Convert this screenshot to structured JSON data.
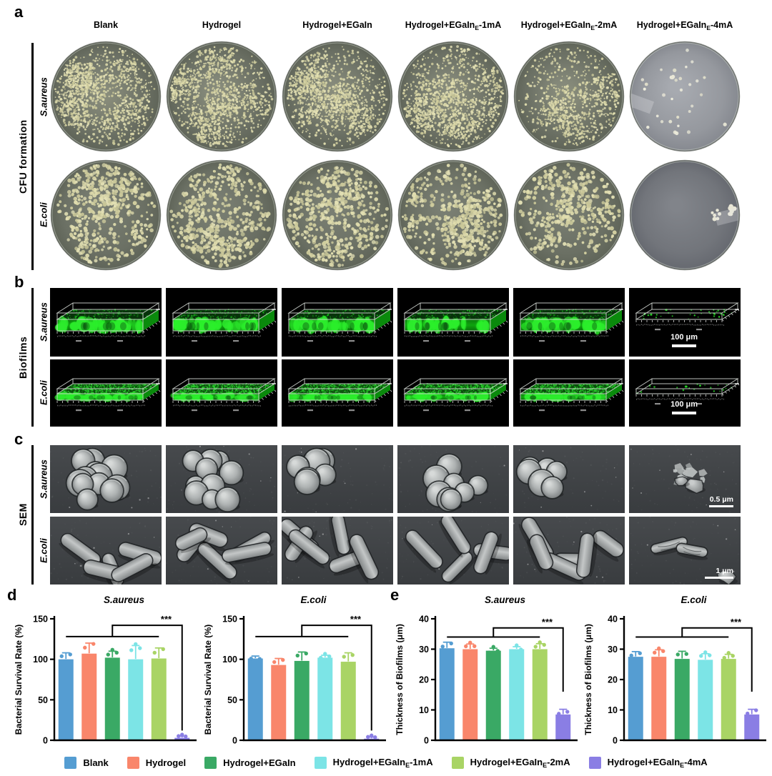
{
  "panels": {
    "a": "a",
    "b": "b",
    "c": "c",
    "d": "d",
    "e": "e"
  },
  "groups": [
    {
      "base": "Blank",
      "sub": "",
      "suffix": "",
      "color": "#559dd2"
    },
    {
      "base": "Hydrogel",
      "sub": "",
      "suffix": "",
      "color": "#f9866b"
    },
    {
      "base": "Hydrogel+EGaIn",
      "sub": "",
      "suffix": "",
      "color": "#3aa965"
    },
    {
      "base": "Hydrogel+EGaIn",
      "sub": "E",
      "suffix": "-1mA",
      "color": "#7ce4e6"
    },
    {
      "base": "Hydrogel+EGaIn",
      "sub": "E",
      "suffix": "-2mA",
      "color": "#a9d465"
    },
    {
      "base": "Hydrogel+EGaIn",
      "sub": "E",
      "suffix": "-4mA",
      "color": "#8a7ee4"
    }
  ],
  "side_labels": {
    "a": "CFU formation",
    "b": "Biofilms",
    "c": "SEM"
  },
  "panel_a": {
    "rows": [
      {
        "label": "S.aureus",
        "tiles": [
          "dense",
          "dense",
          "dense",
          "dense",
          "medium",
          "sparse"
        ]
      },
      {
        "label": "E.coli",
        "tiles": [
          "dense",
          "dense",
          "dense",
          "dense",
          "medium",
          "near-empty"
        ]
      }
    ]
  },
  "panel_b": {
    "rows": [
      {
        "label": "S.aureus",
        "tiles": [
          "thick-biofilm",
          "thick-biofilm",
          "thick-biofilm",
          "thick-biofilm",
          "thick-biofilm",
          "sparse-biofilm"
        ]
      },
      {
        "label": "E.coli",
        "tiles": [
          "thin-biofilm",
          "thin-biofilm",
          "thin-biofilm",
          "thin-biofilm",
          "thin-biofilm",
          "sparse-biofilm"
        ]
      }
    ]
  },
  "panel_c": {
    "rows": [
      {
        "label": "S.aureus",
        "tiles": [
          "cocci",
          "cocci",
          "cocci",
          "cocci",
          "cocci",
          "lysed-debris"
        ]
      },
      {
        "label": "E.coli",
        "tiles": [
          "rods",
          "rods",
          "rods",
          "rods",
          "rods",
          "lysed-rods"
        ]
      }
    ]
  },
  "scale_bars": {
    "biofilm": "100 μm",
    "sem_saureus": "0.5 μm",
    "sem_ecoli": "1 μm"
  },
  "chart_data": [
    {
      "id": "d1",
      "type": "bar",
      "title": "S.aureus",
      "ylabel": "Bacterial Survival Rate (%)",
      "ylim": [
        0,
        150
      ],
      "yticks": [
        0,
        50,
        100,
        150
      ],
      "categories": [
        "Blank",
        "Hydrogel",
        "Hydrogel+EGaIn",
        "Hydrogel+EGaInE-1mA",
        "Hydrogel+EGaInE-2mA",
        "Hydrogel+EGaInE-4mA"
      ],
      "values": [
        100,
        107,
        102,
        100,
        101,
        3
      ],
      "errors": [
        8,
        13,
        8,
        17,
        13,
        2
      ],
      "bracket": {
        "low": 128,
        "high": 142,
        "drop": 12,
        "label": "***"
      }
    },
    {
      "id": "d2",
      "type": "bar",
      "title": "E.coli",
      "ylabel": "Bacterial Survival Rate (%)",
      "ylim": [
        0,
        150
      ],
      "yticks": [
        0,
        50,
        100,
        150
      ],
      "categories": [
        "Blank",
        "Hydrogel",
        "Hydrogel+EGaIn",
        "Hydrogel+EGaInE-1mA",
        "Hydrogel+EGaInE-2mA",
        "Hydrogel+EGaInE-4mA"
      ],
      "values": [
        101,
        93,
        98,
        102,
        97,
        2
      ],
      "errors": [
        3,
        8,
        11,
        3,
        11,
        2
      ],
      "bracket": {
        "low": 128,
        "high": 142,
        "drop": 12,
        "label": "***"
      }
    },
    {
      "id": "e1",
      "type": "bar",
      "title": "S.aureus",
      "ylabel": "Thickness of Biofilms (μm)",
      "ylim": [
        0,
        40
      ],
      "yticks": [
        0,
        10,
        20,
        30,
        40
      ],
      "categories": [
        "Blank",
        "Hydrogel",
        "Hydrogel+EGaIn",
        "Hydrogel+EGaInE-1mA",
        "Hydrogel+EGaInE-2mA",
        "Hydrogel+EGaInE-4mA"
      ],
      "values": [
        30.3,
        30,
        29.5,
        30,
        30,
        8.5
      ],
      "errors": [
        2,
        1.7,
        0.8,
        0.8,
        1.8,
        1.7
      ],
      "bracket": {
        "low": 34,
        "high": 37,
        "drop": 16,
        "label": "***"
      }
    },
    {
      "id": "e2",
      "type": "bar",
      "title": "E.coli",
      "ylabel": "Thickness of Biofilms (μm)",
      "ylim": [
        0,
        40
      ],
      "yticks": [
        0,
        10,
        20,
        30,
        40
      ],
      "categories": [
        "Blank",
        "Hydrogel",
        "Hydrogel+EGaIn",
        "Hydrogel+EGaInE-1mA",
        "Hydrogel+EGaInE-2mA",
        "Hydrogel+EGaInE-4mA"
      ],
      "values": [
        27.5,
        27.5,
        26.8,
        26.5,
        26.8,
        8.5
      ],
      "errors": [
        1.7,
        2.3,
        2.5,
        2,
        1.5,
        1.7
      ],
      "bracket": {
        "low": 34,
        "high": 37,
        "drop": 16,
        "label": "***"
      }
    }
  ]
}
